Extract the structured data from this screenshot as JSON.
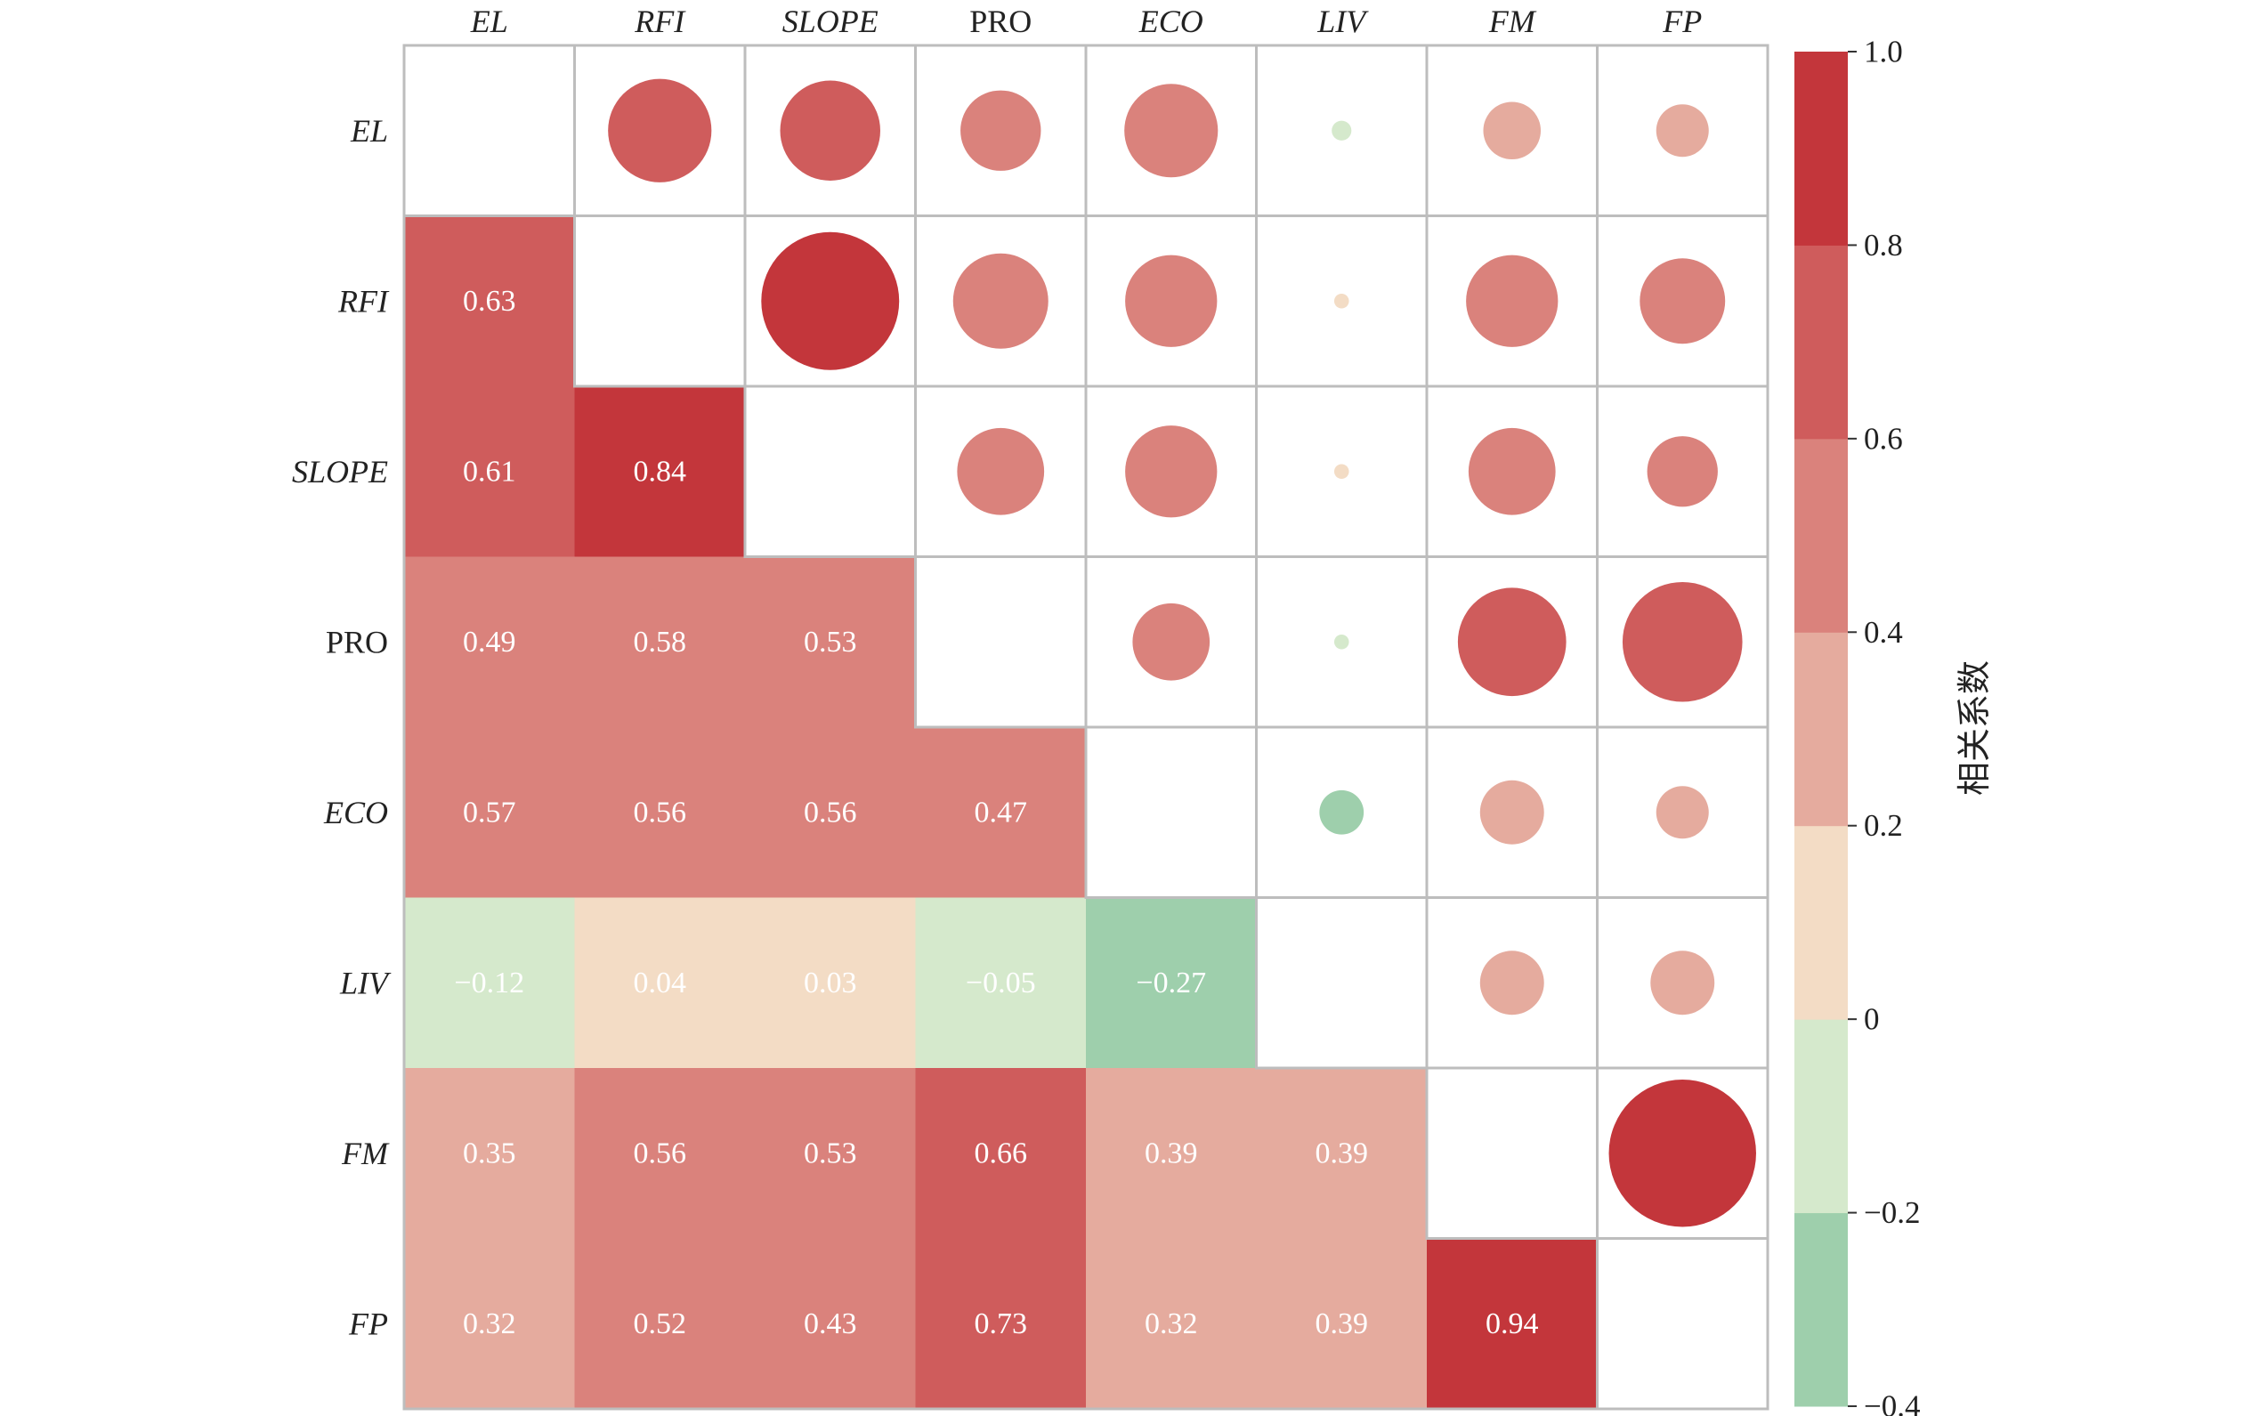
{
  "chart_data": {
    "type": "heatmap",
    "variables": [
      "EL",
      "RFI",
      "SLOPE",
      "PRO",
      "ECO",
      "LIV",
      "FM",
      "FP"
    ],
    "italic_variables": [
      "EL",
      "RFI",
      "SLOPE",
      "ECO",
      "LIV",
      "FM",
      "FP"
    ],
    "matrix": [
      [
        null,
        0.63,
        0.61,
        0.49,
        0.57,
        -0.12,
        0.35,
        0.32
      ],
      [
        0.63,
        null,
        0.84,
        0.58,
        0.56,
        0.04,
        0.56,
        0.52
      ],
      [
        0.61,
        0.84,
        null,
        0.53,
        0.56,
        0.03,
        0.53,
        0.43
      ],
      [
        0.49,
        0.58,
        0.53,
        null,
        0.47,
        -0.05,
        0.66,
        0.73
      ],
      [
        0.57,
        0.56,
        0.56,
        0.47,
        null,
        -0.27,
        0.39,
        0.32
      ],
      [
        -0.12,
        0.04,
        0.03,
        -0.05,
        -0.27,
        null,
        0.39,
        0.39
      ],
      [
        0.35,
        0.56,
        0.53,
        0.66,
        0.39,
        0.39,
        null,
        0.94
      ],
      [
        0.32,
        0.52,
        0.43,
        0.73,
        0.32,
        0.39,
        0.94,
        null
      ]
    ],
    "lower_labels": [
      [
        "0.63"
      ],
      [
        "0.61",
        "0.84"
      ],
      [
        "0.49",
        "0.58",
        "0.53"
      ],
      [
        "0.57",
        "0.56",
        "0.56",
        "0.47"
      ],
      [
        "−0.12",
        "0.04",
        "0.03",
        "−0.05",
        "−0.27"
      ],
      [
        "0.35",
        "0.56",
        "0.53",
        "0.66",
        "0.39",
        "0.39"
      ],
      [
        "0.32",
        "0.52",
        "0.43",
        "0.73",
        "0.32",
        "0.39",
        "0.94"
      ]
    ],
    "upper_display": "circles sized by |r|",
    "colorbar": {
      "title": "相关系数",
      "range": [
        -0.4,
        1.0
      ],
      "ticks": [
        "1.0",
        "0.8",
        "0.6",
        "0.4",
        "0.2",
        "0",
        "−0.2",
        "−0.4"
      ],
      "bins": [
        {
          "from": -0.4,
          "to": -0.2,
          "color": "#9ecfac"
        },
        {
          "from": -0.2,
          "to": 0.0,
          "color": "#d5e9cc"
        },
        {
          "from": 0.0,
          "to": 0.2,
          "color": "#f3dcc5"
        },
        {
          "from": 0.2,
          "to": 0.4,
          "color": "#e5ab9e"
        },
        {
          "from": 0.4,
          "to": 0.6,
          "color": "#da827c"
        },
        {
          "from": 0.6,
          "to": 0.8,
          "color": "#cf5c5c"
        },
        {
          "from": 0.8,
          "to": 1.0,
          "color": "#c3363b"
        }
      ]
    }
  }
}
